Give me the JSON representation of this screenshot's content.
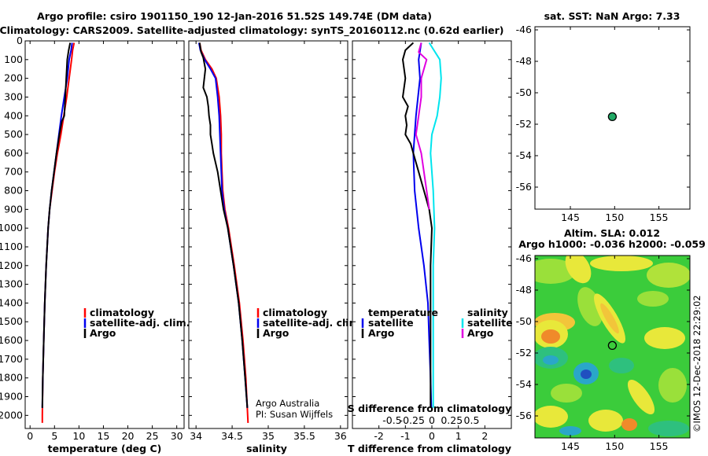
{
  "header": {
    "title_line1": "Argo profile: csiro 1901150_190 12-Jan-2016 51.52S 149.74E (DM data)",
    "title_line2": "Climatology: CARS2009. Satellite-adjusted climatology: synTS_20160112.nc (0.62d earlier)"
  },
  "colors": {
    "climatology": "#ff0000",
    "satellite": "#0000ee",
    "argo": "#000000",
    "satellite_salinity": "#00e5ee",
    "argo_salinity_diff": "#e000e0",
    "sst_marker": "#22aa66"
  },
  "credits": {
    "argo_line1": "Argo Australia",
    "argo_line2": "PI: Susan Wijffels",
    "imos_stamp": "©IMOS 12-Dec-2018 22:29:02"
  },
  "chart_data": [
    {
      "id": "temperature",
      "type": "line",
      "xlabel": "temperature (deg C)",
      "ylabel": "",
      "xlim": [
        -1,
        31.5
      ],
      "ylim": [
        2070,
        0
      ],
      "xticks": [
        0,
        5,
        10,
        15,
        20,
        25,
        30
      ],
      "xtick_labels": [
        "0",
        "5",
        "10",
        "15",
        "20",
        "25",
        "30"
      ],
      "yticks": [
        0,
        100,
        200,
        300,
        400,
        500,
        600,
        700,
        800,
        900,
        1000,
        1100,
        1200,
        1300,
        1400,
        1500,
        1600,
        1700,
        1800,
        1900,
        2000
      ],
      "legend": [
        "climatology",
        "satellite-adj. clim.",
        "Argo"
      ],
      "series": [
        {
          "name": "climatology",
          "color": "#ff0000",
          "depth": [
            10,
            50,
            100,
            200,
            300,
            400,
            500,
            600,
            700,
            800,
            900,
            1000,
            1200,
            1400,
            1600,
            1800,
            2000,
            2040
          ],
          "values": [
            9.0,
            8.7,
            8.5,
            8.0,
            7.5,
            6.9,
            6.3,
            5.6,
            5.0,
            4.5,
            4.0,
            3.7,
            3.3,
            3.0,
            2.8,
            2.6,
            2.5,
            2.5
          ]
        },
        {
          "name": "satellite-adj. clim.",
          "color": "#0000ee",
          "depth": [
            10,
            50,
            100,
            200,
            300,
            400,
            500,
            600,
            700,
            800,
            900,
            1000,
            1200,
            1400,
            1600,
            1800,
            1960
          ],
          "values": [
            8.6,
            8.4,
            8.0,
            7.6,
            7.0,
            6.4,
            5.9,
            5.4,
            4.9,
            4.4,
            4.0,
            3.7,
            3.3,
            3.0,
            2.8,
            2.6,
            2.5
          ]
        },
        {
          "name": "Argo",
          "color": "#000000",
          "depth": [
            10,
            50,
            100,
            200,
            300,
            400,
            430,
            500,
            600,
            700,
            800,
            900,
            1000,
            1200,
            1400,
            1600,
            1800,
            1960
          ],
          "values": [
            8.2,
            7.9,
            7.6,
            7.4,
            7.2,
            7.0,
            6.5,
            6.0,
            5.4,
            4.9,
            4.4,
            4.0,
            3.7,
            3.3,
            3.0,
            2.8,
            2.6,
            2.5
          ]
        }
      ]
    },
    {
      "id": "salinity",
      "type": "line",
      "xlabel": "salinity",
      "ylabel": "",
      "xlim": [
        33.9,
        36.1
      ],
      "ylim": [
        2070,
        0
      ],
      "xticks": [
        34,
        34.5,
        35,
        35.5,
        36
      ],
      "xtick_labels": [
        "34",
        "34.5",
        "35",
        "35.5",
        "36"
      ],
      "legend": [
        "climatology",
        "satellite-adj. clim.",
        "Argo"
      ],
      "series": [
        {
          "name": "climatology",
          "color": "#ff0000",
          "depth": [
            10,
            50,
            100,
            150,
            200,
            300,
            400,
            500,
            600,
            700,
            800,
            900,
            1000,
            1200,
            1400,
            1600,
            1800,
            2040
          ],
          "values": [
            34.05,
            34.07,
            34.13,
            34.22,
            34.28,
            34.32,
            34.34,
            34.35,
            34.35,
            34.36,
            34.37,
            34.4,
            34.45,
            34.53,
            34.6,
            34.65,
            34.69,
            34.72
          ]
        },
        {
          "name": "satellite-adj. clim.",
          "color": "#0000ee",
          "depth": [
            10,
            50,
            100,
            150,
            200,
            300,
            400,
            500,
            600,
            700,
            800,
            900,
            1000,
            1200,
            1400,
            1600,
            1800,
            1960
          ],
          "values": [
            34.04,
            34.06,
            34.12,
            34.2,
            34.27,
            34.3,
            34.32,
            34.33,
            34.34,
            34.35,
            34.36,
            34.39,
            34.44,
            34.52,
            34.59,
            34.64,
            34.68,
            34.71
          ]
        },
        {
          "name": "Argo",
          "color": "#000000",
          "depth": [
            10,
            60,
            90,
            150,
            250,
            300,
            350,
            400,
            450,
            500,
            550,
            600,
            700,
            800,
            900,
            1000,
            1200,
            1400,
            1600,
            1800,
            1960
          ],
          "values": [
            34.05,
            34.07,
            34.1,
            34.13,
            34.1,
            34.15,
            34.17,
            34.18,
            34.2,
            34.2,
            34.22,
            34.24,
            34.3,
            34.34,
            34.38,
            34.44,
            34.52,
            34.59,
            34.64,
            34.68,
            34.71
          ]
        }
      ]
    },
    {
      "id": "difference",
      "type": "line",
      "xlabel": "T difference from climatology",
      "xlabel_secondary": "S difference from climatology",
      "ylabel": "",
      "xlim": [
        -3,
        3
      ],
      "ylim": [
        2070,
        0
      ],
      "xticks": [
        -2,
        -1,
        0,
        1,
        2
      ],
      "xtick_labels": [
        "-2",
        "-1",
        "0",
        "1",
        "2"
      ],
      "secondary_xtick_labels": [
        "-0.5",
        "-0.25",
        "0",
        "0.25",
        "0.5"
      ],
      "legend_temperature_title": "temperature",
      "legend_salinity_title": "salinity",
      "legend": [
        "satellite",
        "Argo",
        "satellite",
        "Argo"
      ],
      "series": [
        {
          "name": "satellite",
          "group": "temperature",
          "color": "#0000ee",
          "depth": [
            10,
            100,
            200,
            400,
            600,
            800,
            1000,
            1200,
            1400,
            1600,
            1800,
            1960
          ],
          "values": [
            -0.4,
            -0.5,
            -0.45,
            -0.6,
            -0.7,
            -0.65,
            -0.5,
            -0.3,
            -0.15,
            -0.1,
            -0.05,
            -0.02
          ]
        },
        {
          "name": "Argo",
          "group": "temperature",
          "color": "#000000",
          "depth": [
            10,
            50,
            100,
            200,
            300,
            350,
            400,
            450,
            500,
            550,
            600,
            700,
            800,
            900,
            1000,
            1200,
            1400,
            1600,
            1800,
            1960
          ],
          "values": [
            -0.7,
            -1.0,
            -1.1,
            -1.0,
            -1.1,
            -0.9,
            -1.0,
            -0.95,
            -1.0,
            -0.8,
            -0.7,
            -0.5,
            -0.3,
            -0.1,
            0.0,
            -0.05,
            -0.05,
            -0.05,
            -0.05,
            -0.05
          ]
        },
        {
          "name": "satellite",
          "group": "salinity",
          "color": "#00e5ee",
          "depth": [
            10,
            100,
            200,
            300,
            400,
            500,
            600,
            800,
            1000,
            1200,
            1400,
            1600,
            1800,
            1960
          ],
          "values": [
            -0.1,
            0.3,
            0.35,
            0.3,
            0.2,
            0.0,
            -0.05,
            0.05,
            0.1,
            0.05,
            0.05,
            0.05,
            0.05,
            0.05
          ]
        },
        {
          "name": "Argo",
          "group": "salinity",
          "color": "#e000e0",
          "depth": [
            10,
            60,
            100,
            200,
            300,
            400,
            500,
            600,
            700,
            800,
            900
          ],
          "values": [
            -0.4,
            -0.5,
            -0.2,
            -0.4,
            -0.4,
            -0.5,
            -0.6,
            -0.4,
            -0.3,
            -0.2,
            -0.1
          ]
        }
      ]
    },
    {
      "id": "sst_map",
      "type": "scatter",
      "title": "sat. SST: NaN Argo: 7.33",
      "xlim": [
        141,
        158.5
      ],
      "ylim": [
        -57.4,
        -45.8
      ],
      "xticks": [
        145,
        150,
        155
      ],
      "yticks": [
        -46,
        -48,
        -50,
        -52,
        -54,
        -56
      ],
      "points": [
        {
          "x": 149.74,
          "y": -51.52
        }
      ]
    },
    {
      "id": "sla_map",
      "type": "heatmap",
      "title_line1": "Altim. SLA: 0.012",
      "title_line2": "Argo h1000: -0.036 h2000: -0.059",
      "xlim": [
        141,
        158.5
      ],
      "ylim": [
        -57.4,
        -45.8
      ],
      "xticks": [
        145,
        150,
        155
      ],
      "yticks": [
        -46,
        -48,
        -50,
        -52,
        -54,
        -56
      ],
      "points": [
        {
          "x": 149.74,
          "y": -51.52
        }
      ]
    }
  ]
}
